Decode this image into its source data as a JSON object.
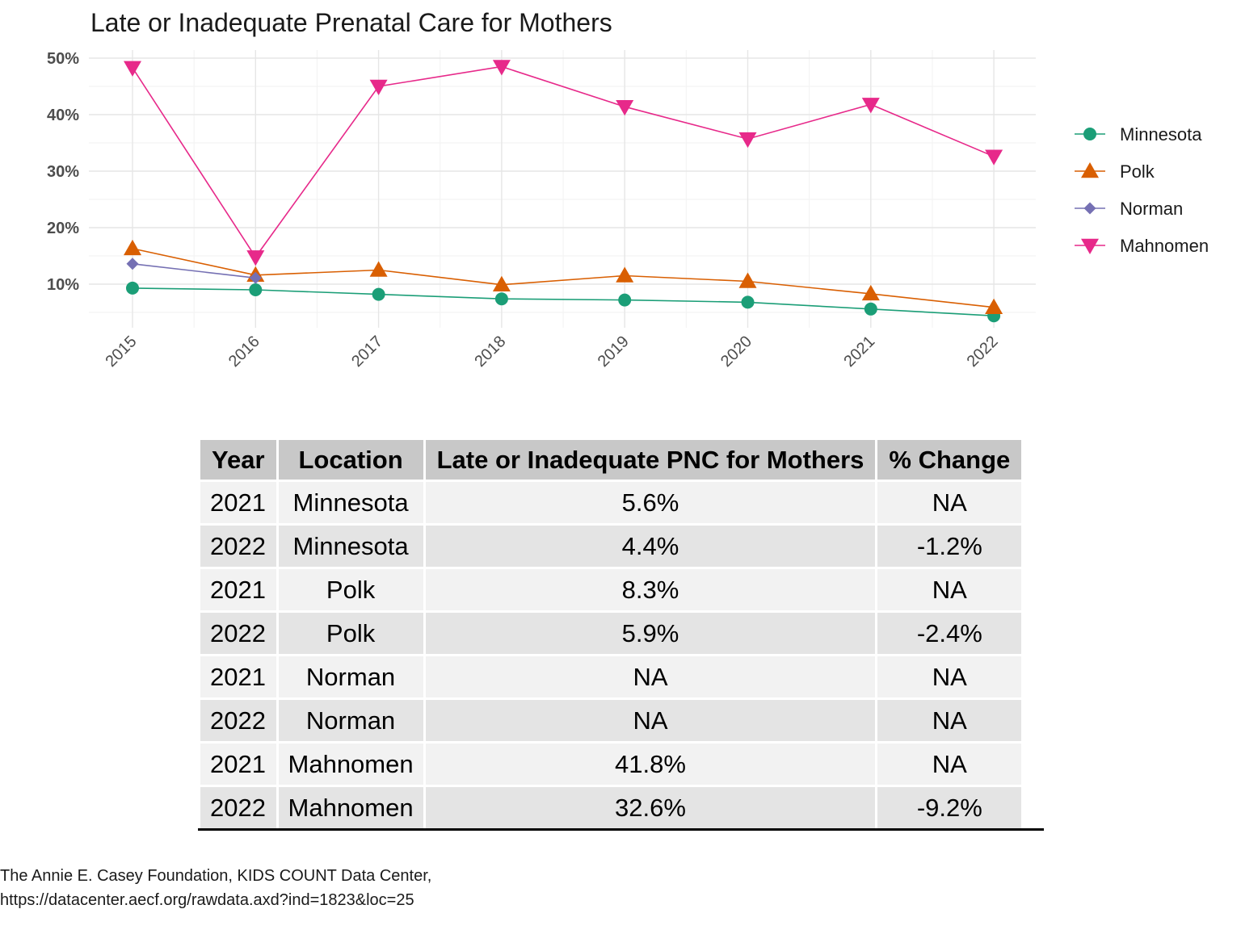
{
  "chart_data": {
    "type": "line",
    "title": "Late or Inadequate Prenatal Care for Mothers",
    "x": [
      "2015",
      "2016",
      "2017",
      "2018",
      "2019",
      "2020",
      "2021",
      "2022"
    ],
    "y_ticks": [
      "10%",
      "20%",
      "30%",
      "40%",
      "50%"
    ],
    "ylim": [
      0.0,
      0.5
    ],
    "grid": true,
    "legend_position": "right",
    "series": [
      {
        "name": "Minnesota",
        "color": "#1b9e77",
        "marker": "circle",
        "values": [
          0.093,
          0.09,
          0.082,
          0.074,
          0.072,
          0.068,
          0.056,
          0.044
        ]
      },
      {
        "name": "Polk",
        "color": "#d95f02",
        "marker": "triangle-up",
        "values": [
          0.163,
          0.116,
          0.125,
          0.099,
          0.115,
          0.105,
          0.083,
          0.059
        ]
      },
      {
        "name": "Norman",
        "color": "#7570b3",
        "marker": "diamond",
        "values": [
          0.136,
          0.111,
          null,
          null,
          null,
          null,
          null,
          null
        ]
      },
      {
        "name": "Mahnomen",
        "color": "#e7298a",
        "marker": "triangle-down",
        "values": [
          0.483,
          0.148,
          0.45,
          0.485,
          0.414,
          0.357,
          0.418,
          0.326
        ]
      }
    ]
  },
  "table": {
    "headers": [
      "Year",
      "Location",
      "Late or Inadequate PNC for Mothers",
      "% Change"
    ],
    "rows": [
      [
        "2021",
        "Minnesota",
        "5.6%",
        "NA"
      ],
      [
        "2022",
        "Minnesota",
        "4.4%",
        "-1.2%"
      ],
      [
        "2021",
        "Polk",
        "8.3%",
        "NA"
      ],
      [
        "2022",
        "Polk",
        "5.9%",
        "-2.4%"
      ],
      [
        "2021",
        "Norman",
        "NA",
        "NA"
      ],
      [
        "2022",
        "Norman",
        "NA",
        "NA"
      ],
      [
        "2021",
        "Mahnomen",
        "41.8%",
        "NA"
      ],
      [
        "2022",
        "Mahnomen",
        "32.6%",
        "-9.2%"
      ]
    ]
  },
  "source": {
    "line1": "The Annie E. Casey Foundation, KIDS COUNT Data Center,",
    "line2": "https://datacenter.aecf.org/rawdata.axd?ind=1823&loc=25"
  }
}
